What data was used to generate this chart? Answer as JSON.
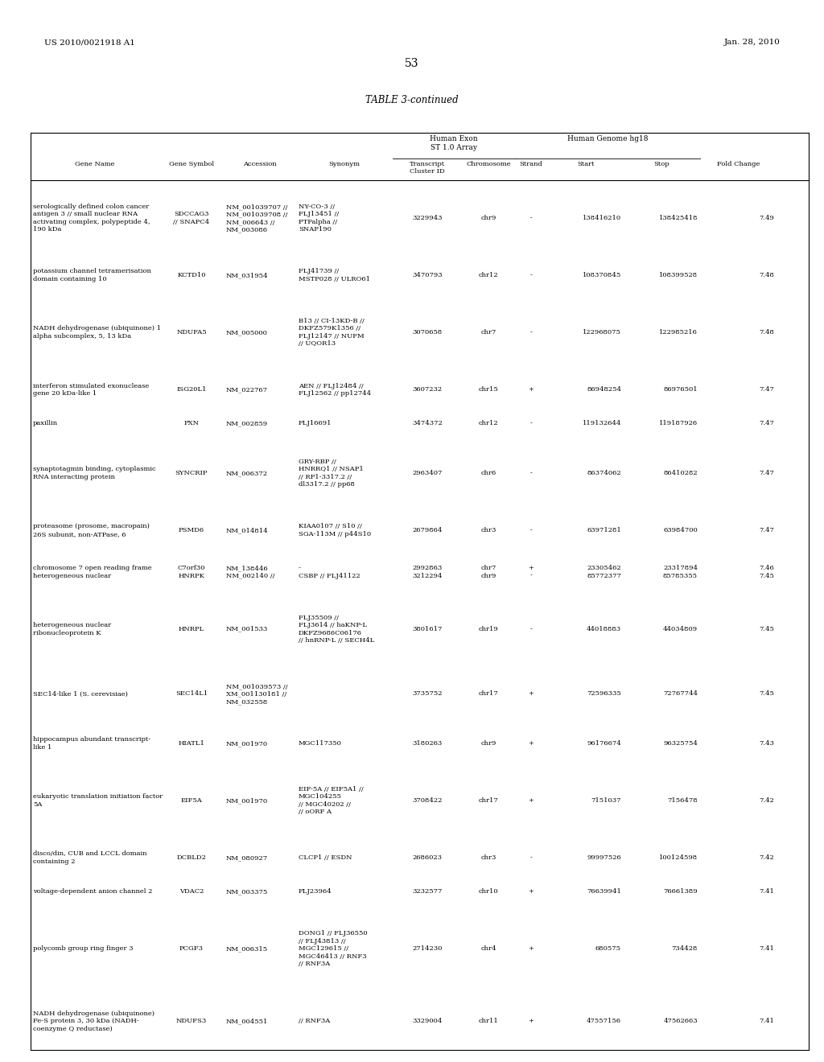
{
  "page_number": "53",
  "patent_left": "US 2010/0021918 A1",
  "patent_right": "Jan. 28, 2010",
  "table_title": "TABLE 3-continued",
  "rows": [
    {
      "gene_name": "serologically defined colon cancer\nantigen 3 // small nuclear RNA\nactivating complex, polypeptide 4,\n190 kDa",
      "gene_symbol": "SDCCAG3\n// SNAPC4",
      "accession": "NM_001039707 //\nNM_001039708 //\nNM_006643 //\nNM_003086",
      "synonym": "NY-CO-3 //\nFLJ13451 //\nPTFalpha //\nSNAP190",
      "transcript_id": "3229943",
      "chromosome": "chr9",
      "strand": "-",
      "start": "138416210",
      "stop": "138425418",
      "fold_change": "7.49"
    },
    {
      "gene_name": "potassium channel tetramerisation\ndomain containing 10",
      "gene_symbol": "KCTD10",
      "accession": "NM_031954",
      "synonym": "FLJ41739 //\nMSTP028 // ULRO61",
      "transcript_id": "3470793",
      "chromosome": "chr12",
      "strand": "-",
      "start": "108370845",
      "stop": "108399528",
      "fold_change": "7.48"
    },
    {
      "gene_name": "NADH dehydrogenase (ubiquinone) 1\nalpha subcomplex, 5, 13 kDa",
      "gene_symbol": "NDUFA5",
      "accession": "NM_005000",
      "synonym": "B13 // CI-13KD-B //\nDKFZ579K1356 //\nFLJ12147 // NUFM\n// UQOR13",
      "transcript_id": "3070658",
      "chromosome": "chr7",
      "strand": "-",
      "start": "122968075",
      "stop": "122985216",
      "fold_change": "7.48"
    },
    {
      "gene_name": "interferon stimulated exonuclease\ngene 20 kDa-like 1",
      "gene_symbol": "ISG20L1",
      "accession": "NM_022767",
      "synonym": "AEN // FLJ12484 //\nFLJ12562 // pp12744",
      "transcript_id": "3607232",
      "chromosome": "chr15",
      "strand": "+",
      "start": "86948254",
      "stop": "86976501",
      "fold_change": "7.47"
    },
    {
      "gene_name": "paxillin",
      "gene_symbol": "PXN",
      "accession": "NM_002859",
      "synonym": "FLJ16691",
      "transcript_id": "3474372",
      "chromosome": "chr12",
      "strand": "-",
      "start": "119132644",
      "stop": "119187926",
      "fold_change": "7.47"
    },
    {
      "gene_name": "synaptotagmin binding, cytoplasmic\nRNA interacting protein",
      "gene_symbol": "SYNCRIP",
      "accession": "NM_006372",
      "synonym": "GRY-RBP //\nHNRRQ1 // NSAP1\n// RP1-3317.2 //\ndl3317.2 // pp68",
      "transcript_id": "2963407",
      "chromosome": "chr6",
      "strand": "-",
      "start": "86374062",
      "stop": "86410282",
      "fold_change": "7.47"
    },
    {
      "gene_name": "proteasome (prosome, macropain)\n26S subunit, non-ATPase, 6",
      "gene_symbol": "PSMD6",
      "accession": "NM_014814",
      "synonym": "KIAA0107 // S10 //\nSGA-113M // p44S10",
      "transcript_id": "2679864",
      "chromosome": "chr3",
      "strand": "-",
      "start": "63971281",
      "stop": "63984700",
      "fold_change": "7.47"
    },
    {
      "gene_name": "chromosome 7 open reading frame\nheterogeneous nuclear",
      "gene_symbol": "C7orf30\nHNRPK",
      "accession": "NM_138446\nNM_002140 //",
      "synonym": "-\nCSBP // FLJ41122",
      "transcript_id": "2992863\n3212294",
      "chromosome": "chr7\nchr9",
      "strand": "+\n-",
      "start": "23305462\n85772377",
      "stop": "23317894\n85785355",
      "fold_change": "7.46\n7.45"
    },
    {
      "gene_name": "heterogeneous nuclear\nribonucleoprotein K",
      "gene_symbol": "HNRPL",
      "accession": "NM_001533",
      "synonym": "FLJ35509 //\nFLJ3614 // haKNP-L\nDKFZ9686C06176\n// hnRNP-L // SECH4L",
      "transcript_id": "3801617",
      "chromosome": "chr19",
      "strand": "-",
      "start": "44018883",
      "stop": "44034809",
      "fold_change": "7.45"
    },
    {
      "gene_name": "SEC14-like 1 (S. cerevisiae)",
      "gene_symbol": "SEC14L1",
      "accession": "NM_001039573 //\nXM_001130181 //\nNM_032558",
      "synonym": "",
      "transcript_id": "3735752",
      "chromosome": "chr17",
      "strand": "+",
      "start": "72596335",
      "stop": "72767744",
      "fold_change": "7.45"
    },
    {
      "gene_name": "hippocampus abundant transcript-\nlike 1",
      "gene_symbol": "HIATL1",
      "accession": "NM_001970",
      "synonym": "MGC117350",
      "transcript_id": "3180263",
      "chromosome": "chr9",
      "strand": "+",
      "start": "96176674",
      "stop": "96325754",
      "fold_change": "7.43"
    },
    {
      "gene_name": "eukaryotic translation initiation factor\n5A",
      "gene_symbol": "EIF5A",
      "accession": "NM_001970",
      "synonym": "EIF-5A // EIF5A1 //\nMGC104255\n// MGC40202 //\n// oORF A",
      "transcript_id": "3708422",
      "chromosome": "chr17",
      "strand": "+",
      "start": "7151037",
      "stop": "7156478",
      "fold_change": "7.42"
    },
    {
      "gene_name": "disco/din, CUB and LCCL domain\ncontaining 2",
      "gene_symbol": "DCBLD2",
      "accession": "NM_080927",
      "synonym": "CLCP1 // ESDN",
      "transcript_id": "2686023",
      "chromosome": "chr3",
      "strand": "-",
      "start": "99997526",
      "stop": "100124598",
      "fold_change": "7.42"
    },
    {
      "gene_name": "voltage-dependent anion channel 2",
      "gene_symbol": "VDAC2",
      "accession": "NM_003375",
      "synonym": "FLJ23964",
      "transcript_id": "3232577",
      "chromosome": "chr10",
      "strand": "+",
      "start": "76639941",
      "stop": "76661389",
      "fold_change": "7.41"
    },
    {
      "gene_name": "polycomb group ring finger 3",
      "gene_symbol": "PCGF3",
      "accession": "NM_006315",
      "synonym": "DONG1 // FLJ36550\n// FLJ43813 //\nMGC129615 //\nMGC46413 // RNF3\n// RNF3A",
      "transcript_id": "2714230",
      "chromosome": "chr4",
      "strand": "+",
      "start": "680575",
      "stop": "734428",
      "fold_change": "7.41"
    },
    {
      "gene_name": "NADH dehydrogenase (ubiquinone)\nFe-S protein 3, 30 kDa (NADH-\ncoenzyme Q reductase)",
      "gene_symbol": "NDUFS3",
      "accession": "NM_004551",
      "synonym": "// RNF3A",
      "transcript_id": "3329004",
      "chromosome": "chr11",
      "strand": "+",
      "start": "47557156",
      "stop": "47562663",
      "fold_change": "7.41"
    }
  ]
}
